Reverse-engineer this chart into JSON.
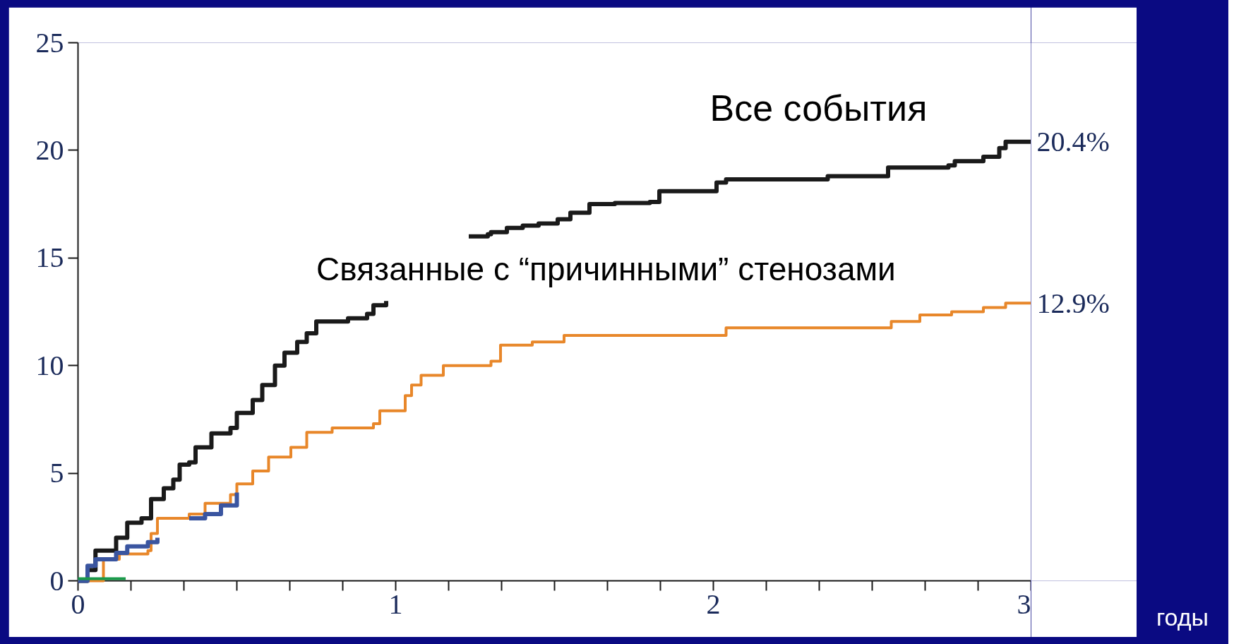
{
  "chart_data": {
    "type": "step",
    "xlim": [
      0,
      3
    ],
    "ylim": [
      0,
      25
    ],
    "xticks": [
      0,
      {
        "value": 0.1667,
        "label": null
      },
      {
        "value": 0.3333,
        "label": null
      },
      {
        "value": 0.5,
        "label": null
      },
      {
        "value": 0.6667,
        "label": null
      },
      {
        "value": 0.8333,
        "label": null
      },
      1,
      {
        "value": 1.1667,
        "label": null
      },
      {
        "value": 1.3333,
        "label": null
      },
      {
        "value": 1.5,
        "label": null
      },
      {
        "value": 1.6667,
        "label": null
      },
      {
        "value": 1.8333,
        "label": null
      },
      2,
      {
        "value": 2.1667,
        "label": null
      },
      {
        "value": 2.3333,
        "label": null
      },
      {
        "value": 2.5,
        "label": null
      },
      {
        "value": 2.6667,
        "label": null
      },
      {
        "value": 2.8333,
        "label": null
      },
      3
    ],
    "yticks": [
      0,
      5,
      10,
      15,
      20,
      25
    ],
    "grid": false,
    "line_style": "solid",
    "marker": "none",
    "series": [
      {
        "name": "Все события",
        "color": "#1a1a1a",
        "x": [
          0,
          0.03,
          0.055,
          0.105,
          0.12,
          0.155,
          0.2,
          0.23,
          0.27,
          0.3,
          0.32,
          0.35,
          0.37,
          0.42,
          0.48,
          0.5,
          0.55,
          0.58,
          0.62,
          0.65,
          0.69,
          0.72,
          0.75,
          0.85,
          0.91,
          0.93,
          0.97,
          1.1,
          1.23,
          1.29,
          1.3,
          1.35,
          1.4,
          1.45,
          1.51,
          1.55,
          1.61,
          1.69,
          1.8,
          1.83,
          2.0,
          2.01,
          2.04,
          2.35,
          2.36,
          2.54,
          2.55,
          2.74,
          2.76,
          2.85,
          2.9,
          2.92,
          3.0
        ],
        "values": [
          0,
          0.5,
          1.4,
          1.4,
          2.0,
          2.7,
          2.9,
          3.8,
          4.3,
          4.7,
          5.4,
          5.5,
          6.2,
          6.85,
          7.1,
          7.8,
          8.4,
          9.1,
          10.0,
          10.6,
          11.1,
          11.5,
          12.05,
          12.2,
          12.4,
          12.8,
          13.0,
          null,
          16.0,
          16.1,
          16.2,
          16.4,
          16.5,
          16.6,
          16.8,
          17.1,
          17.5,
          17.55,
          17.6,
          18.1,
          18.1,
          18.5,
          18.65,
          18.65,
          18.8,
          18.8,
          19.2,
          19.3,
          19.5,
          19.7,
          20.1,
          20.4,
          20.4
        ]
      },
      {
        "name": "Связанные с “причинными” стенозами",
        "color": "#e8872a",
        "x": [
          0,
          0.08,
          0.13,
          0.22,
          0.23,
          0.25,
          0.35,
          0.4,
          0.48,
          0.5,
          0.55,
          0.6,
          0.67,
          0.72,
          0.8,
          0.93,
          0.95,
          1.03,
          1.05,
          1.08,
          1.15,
          1.3,
          1.33,
          1.43,
          1.53,
          2.0,
          2.04,
          2.53,
          2.56,
          2.65,
          2.75,
          2.85,
          2.92,
          3.0
        ],
        "values": [
          0,
          1.0,
          1.25,
          1.4,
          2.2,
          2.9,
          3.1,
          3.6,
          4.0,
          4.5,
          5.1,
          5.75,
          6.2,
          6.9,
          7.1,
          7.3,
          7.9,
          8.6,
          9.1,
          9.55,
          10.0,
          10.2,
          10.95,
          11.1,
          11.4,
          11.4,
          11.75,
          11.75,
          12.05,
          12.35,
          12.5,
          12.7,
          12.9,
          12.9
        ]
      },
      {
        "color": "#3a55a0",
        "x": [
          0,
          0.03,
          0.055,
          0.12,
          0.155,
          0.22,
          0.25,
          0.3,
          0.35,
          0.4,
          0.45,
          0.5
        ],
        "values": [
          0,
          0.7,
          1.0,
          1.3,
          1.6,
          1.8,
          2.0,
          null,
          2.9,
          3.1,
          3.5,
          4.1
        ]
      },
      {
        "color": "#1a9a4a",
        "x": [
          0,
          0.15
        ],
        "values": [
          0.1,
          0.1
        ]
      }
    ],
    "annotations": [
      {
        "text": "20.4%",
        "x": 3,
        "y": 20.4
      },
      {
        "text": "12.9%",
        "x": 3,
        "y": 12.9
      },
      "годы"
    ]
  }
}
